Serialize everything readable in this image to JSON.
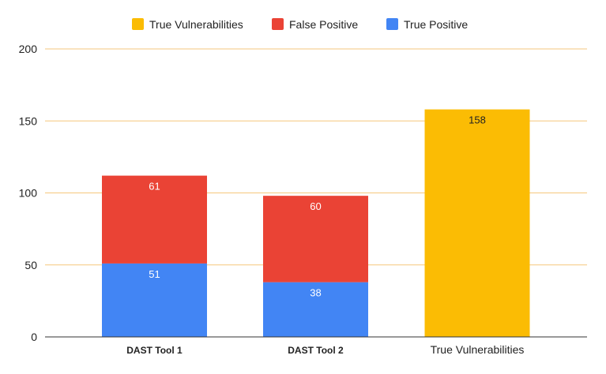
{
  "chart_data": {
    "type": "bar",
    "stacked": true,
    "categories": [
      "DAST Tool 1",
      "DAST Tool 2",
      "True Vulnerabilities"
    ],
    "series": [
      {
        "name": "True Positive",
        "color": "#4285f4",
        "values": [
          51,
          38,
          null
        ]
      },
      {
        "name": "False Positive",
        "color": "#ea4335",
        "values": [
          61,
          60,
          null
        ]
      },
      {
        "name": "True Vulnerabilities",
        "color": "#fbbc04",
        "values": [
          null,
          null,
          158
        ]
      }
    ],
    "legend_order": [
      "True Vulnerabilities",
      "False Positive",
      "True Positive"
    ],
    "legend_position": "top",
    "ylim": [
      0,
      200
    ],
    "yticks": [
      0,
      50,
      100,
      150,
      200
    ],
    "grid": true,
    "grid_color": "#f6c77c",
    "data_labels": true
  }
}
